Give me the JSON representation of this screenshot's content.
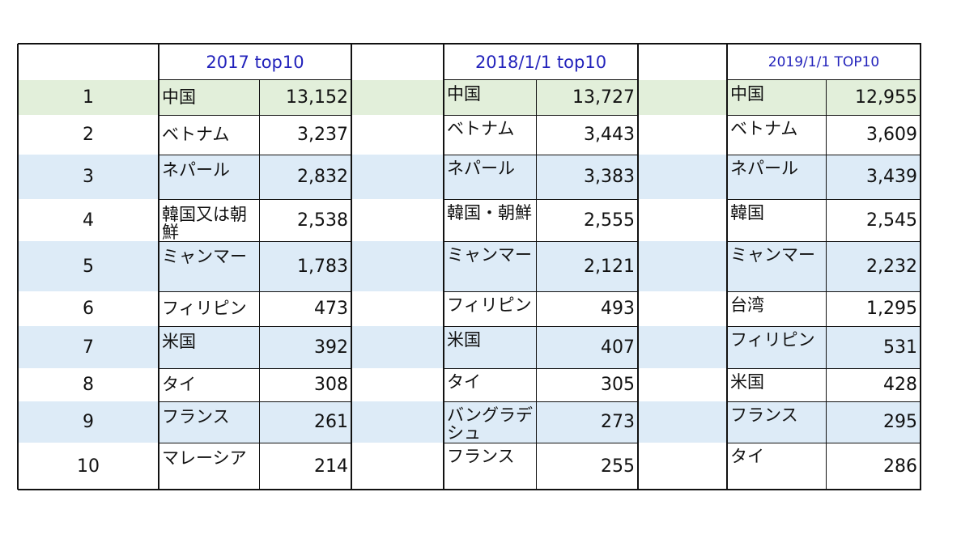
{
  "table": {
    "headers": [
      "2017 top10",
      "2018/1/1  top10",
      "2019/1/1   TOP10"
    ],
    "rows": [
      {
        "rank": "1",
        "y2017": {
          "name": "中国",
          "count": "13,152"
        },
        "y2018": {
          "name": "中国",
          "count": "13,727"
        },
        "y2019": {
          "name": "中国",
          "count": "12,955"
        }
      },
      {
        "rank": "2",
        "y2017": {
          "name": "ベトナム",
          "count": "3,237"
        },
        "y2018": {
          "name": "ベトナム",
          "count": "3,443"
        },
        "y2019": {
          "name": "ベトナム",
          "count": "3,609"
        }
      },
      {
        "rank": "3",
        "y2017": {
          "name": "ネパール",
          "count": "2,832"
        },
        "y2018": {
          "name": "ネパール",
          "count": "3,383"
        },
        "y2019": {
          "name": "ネパール",
          "count": "3,439"
        }
      },
      {
        "rank": "4",
        "y2017": {
          "name": "韓国又は朝鮮",
          "count": "2,538"
        },
        "y2018": {
          "name": "韓国・朝鮮",
          "count": "2,555"
        },
        "y2019": {
          "name": "韓国",
          "count": "2,545"
        }
      },
      {
        "rank": "5",
        "y2017": {
          "name": "ミャンマー",
          "count": "1,783"
        },
        "y2018": {
          "name": "ミャンマー",
          "count": "2,121"
        },
        "y2019": {
          "name": "ミャンマー",
          "count": "2,232"
        }
      },
      {
        "rank": "6",
        "y2017": {
          "name": "フィリピン",
          "count": "473"
        },
        "y2018": {
          "name": "フィリピン",
          "count": "493"
        },
        "y2019": {
          "name": "台湾",
          "count": "1,295"
        }
      },
      {
        "rank": "7",
        "y2017": {
          "name": "米国",
          "count": "392"
        },
        "y2018": {
          "name": "米国",
          "count": "407"
        },
        "y2019": {
          "name": "フィリピン",
          "count": "531"
        }
      },
      {
        "rank": "8",
        "y2017": {
          "name": "タイ",
          "count": "308"
        },
        "y2018": {
          "name": "タイ",
          "count": "305"
        },
        "y2019": {
          "name": "米国",
          "count": "428"
        }
      },
      {
        "rank": "9",
        "y2017": {
          "name": "フランス",
          "count": "261"
        },
        "y2018": {
          "name": "バングラデシュ",
          "count": "273"
        },
        "y2019": {
          "name": "フランス",
          "count": "295"
        }
      },
      {
        "rank": "10",
        "y2017": {
          "name": "マレーシア",
          "count": "214"
        },
        "y2018": {
          "name": "フランス",
          "count": "255"
        },
        "y2019": {
          "name": "タイ",
          "count": "286"
        }
      }
    ]
  },
  "colors": {
    "header_text": "#2222bb",
    "row1_fill": "#e2efda",
    "odd_row_fill": "#ddebf7",
    "border": "#111111"
  }
}
